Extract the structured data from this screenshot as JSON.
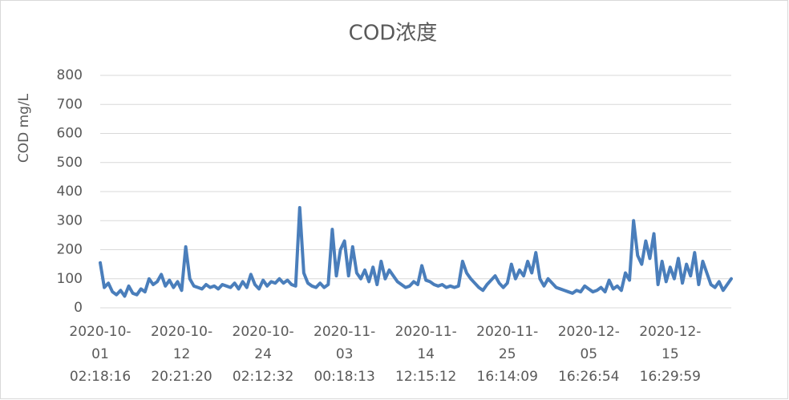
{
  "chart_data": {
    "type": "line",
    "title": "COD浓度",
    "y_label": "COD mg/L",
    "categories": [
      "2020-10-\n01\n02:18:16",
      null,
      null,
      null,
      null,
      null,
      null,
      null,
      null,
      null,
      null,
      null,
      null,
      null,
      null,
      null,
      null,
      null,
      null,
      null,
      "2020-10-\n12\n20:21:20",
      null,
      null,
      null,
      null,
      null,
      null,
      null,
      null,
      null,
      null,
      null,
      null,
      null,
      null,
      null,
      null,
      null,
      null,
      null,
      "2020-10-\n24\n02:12:32",
      null,
      null,
      null,
      null,
      null,
      null,
      null,
      null,
      null,
      null,
      null,
      null,
      null,
      null,
      null,
      null,
      null,
      null,
      null,
      "2020-11-\n03\n00:18:13",
      null,
      null,
      null,
      null,
      null,
      null,
      null,
      null,
      null,
      null,
      null,
      null,
      null,
      null,
      null,
      null,
      null,
      null,
      null,
      "2020-11-\n14\n12:15:12",
      null,
      null,
      null,
      null,
      null,
      null,
      null,
      null,
      null,
      null,
      null,
      null,
      null,
      null,
      null,
      null,
      null,
      null,
      null,
      "2020-11-\n25\n16:14:09",
      null,
      null,
      null,
      null,
      null,
      null,
      null,
      null,
      null,
      null,
      null,
      null,
      null,
      null,
      null,
      null,
      null,
      null,
      null,
      "2020-12-\n05\n16:26:54",
      null,
      null,
      null,
      null,
      null,
      null,
      null,
      null,
      null,
      null,
      null,
      null,
      null,
      null,
      null,
      null,
      null,
      null,
      null,
      "2020-12-\n15\n16:29:59",
      null,
      null,
      null,
      null,
      null,
      null,
      null,
      null,
      null,
      null,
      null,
      null,
      null,
      null,
      null
    ],
    "values": [
      155,
      70,
      85,
      55,
      45,
      60,
      40,
      75,
      50,
      45,
      65,
      55,
      100,
      80,
      90,
      115,
      75,
      95,
      70,
      90,
      60,
      210,
      100,
      75,
      70,
      65,
      80,
      70,
      75,
      65,
      80,
      75,
      70,
      85,
      65,
      90,
      70,
      115,
      80,
      65,
      95,
      75,
      90,
      85,
      100,
      85,
      95,
      80,
      75,
      345,
      120,
      85,
      75,
      70,
      85,
      70,
      80,
      270,
      110,
      200,
      230,
      110,
      210,
      120,
      100,
      130,
      90,
      140,
      80,
      160,
      100,
      130,
      110,
      90,
      80,
      70,
      75,
      90,
      80,
      145,
      95,
      90,
      80,
      75,
      80,
      70,
      75,
      70,
      75,
      160,
      120,
      100,
      85,
      70,
      60,
      80,
      95,
      110,
      85,
      70,
      85,
      150,
      100,
      130,
      110,
      160,
      120,
      190,
      100,
      75,
      100,
      85,
      70,
      65,
      60,
      55,
      50,
      60,
      55,
      75,
      65,
      55,
      60,
      70,
      55,
      95,
      65,
      75,
      60,
      120,
      95,
      300,
      180,
      150,
      230,
      170,
      255,
      80,
      160,
      90,
      140,
      100,
      170,
      85,
      150,
      110,
      190,
      80,
      160,
      120,
      80,
      70,
      90,
      60,
      80,
      100
    ],
    "color": "#4a7ebb",
    "ylim": [
      0,
      800
    ],
    "yticks": [
      0,
      100,
      200,
      300,
      400,
      500,
      600,
      700,
      800
    ],
    "grid": true
  }
}
